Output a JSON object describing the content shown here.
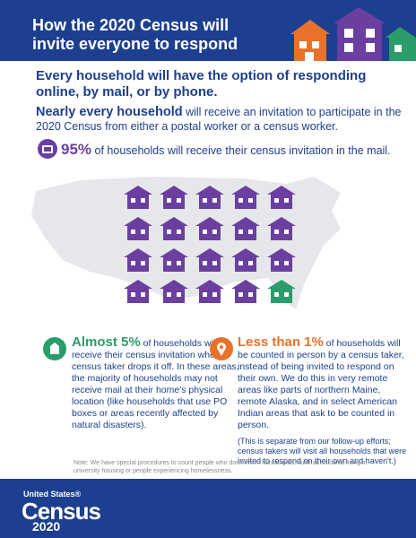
{
  "header": {
    "title": "How the 2020 Census will invite everyone to respond"
  },
  "subhead": {
    "line": "Every household will have the option of responding online, by mail, or by phone."
  },
  "invite": {
    "strong": "Nearly every household",
    "rest": "will receive an invitation to participate in the 2020 Census from either a postal worker or a census worker."
  },
  "mail_stat": {
    "pct": "95%",
    "text": "of households will receive their census invitation in the mail."
  },
  "houses": {
    "purple_count": 19,
    "green_count": 1
  },
  "drop_off": {
    "highlight": "Almost 5%",
    "text1": "of households will receive their census invitation when a census taker drops it off. In these areas, the majority of households may not receive mail at their home's physical location (like households that use PO boxes or areas recently affected by natural disasters)."
  },
  "in_person": {
    "highlight": "Less than 1%",
    "text1": "of households will be counted in person by a census taker, instead of being invited to respond on their own. We do this in very remote areas like parts of northern Maine, remote Alaska, and in select American Indian areas that ask to be counted in person.",
    "note": "(This is separate from our follow-up efforts; census takers will visit all households that were invited to respond on their own and haven't.)"
  },
  "footnote": "Note: We have special procedures to count people who don't live in households, such as students living in university housing or people experiencing homelessness.",
  "footer": {
    "united_states": "United States®",
    "census": "Census",
    "year": "2020"
  },
  "colors": {
    "navy": "#1d3f8f",
    "purple": "#6b3fa0",
    "green": "#2a9d6a",
    "orange": "#e8722a",
    "map_gray": "#e6e7ea"
  }
}
